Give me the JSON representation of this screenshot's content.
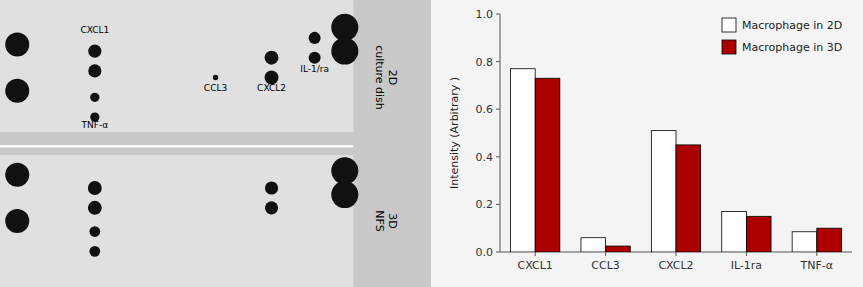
{
  "chart_data": {
    "type": "bar",
    "categories": [
      "CXCL1",
      "CCL3",
      "CXCL2",
      "IL-1ra",
      "TNF-α"
    ],
    "series": [
      {
        "name": "Macrophage in 2D",
        "color": "#ffffff",
        "values": [
          0.77,
          0.06,
          0.51,
          0.17,
          0.085
        ]
      },
      {
        "name": "Macrophage in 3D",
        "color": "#aa0000",
        "values": [
          0.73,
          0.025,
          0.45,
          0.15,
          0.1
        ]
      }
    ],
    "ylabel": "Intensity (Arbitrary )",
    "ylim": [
      0,
      1.0
    ],
    "yticks": [
      {
        "value": 0,
        "label": "0.0"
      },
      0.2,
      0.4,
      0.6,
      0.8,
      {
        "value": 1.0,
        "label": "1.0"
      }
    ],
    "grid": false,
    "legend": "upper right",
    "annotations": [
      "CXCL1",
      "TNF-α",
      "CCL3",
      "CXCL2",
      "IL-1/ra",
      "2D\nculture dish",
      "3D\nNFS"
    ]
  }
}
